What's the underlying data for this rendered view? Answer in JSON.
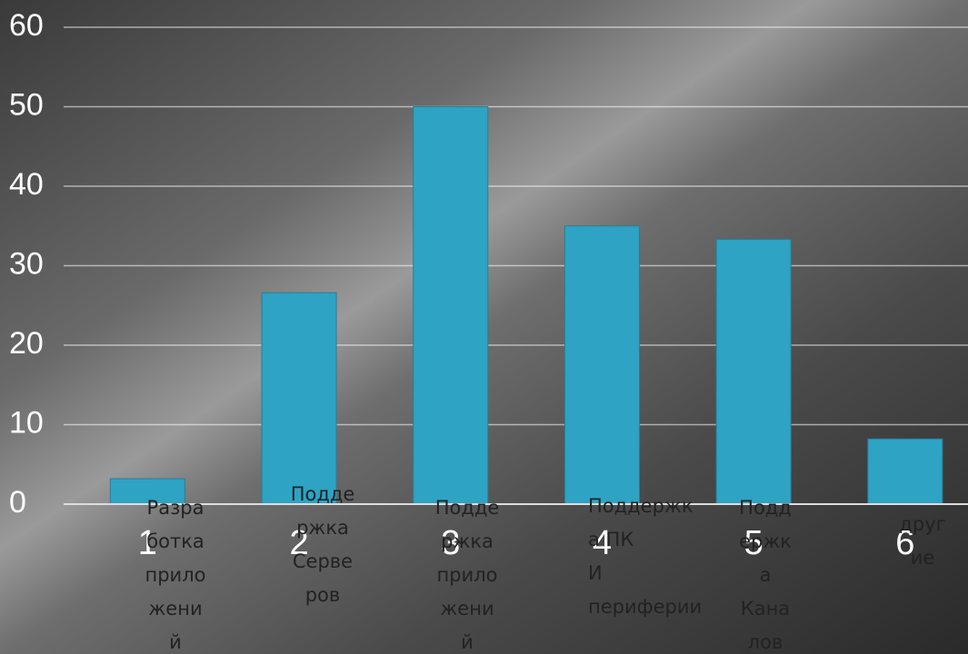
{
  "chart_data": {
    "type": "bar",
    "categories": [
      "1",
      "2",
      "3",
      "4",
      "5",
      "6"
    ],
    "values": [
      3.2,
      26.6,
      50,
      35,
      33.3,
      8.2
    ],
    "color": "#2ea3c4",
    "ylim": [
      0,
      60
    ],
    "yticks": [
      0,
      10,
      20,
      30,
      40,
      50,
      60
    ],
    "grid": true,
    "annotations": [
      [
        "Разра",
        "ботка",
        "прило",
        "жени",
        "й"
      ],
      [
        "Подде",
        "ржка",
        "Серве",
        "ров"
      ],
      [
        "Подде",
        "ржка",
        "прило",
        "жени",
        "й"
      ],
      [
        "Поддержк",
        "а ПК",
        "И",
        "периферии"
      ],
      [
        "Подд",
        "ержк",
        "а",
        "Кана",
        "лов"
      ],
      [
        "друг",
        "ие"
      ]
    ]
  }
}
